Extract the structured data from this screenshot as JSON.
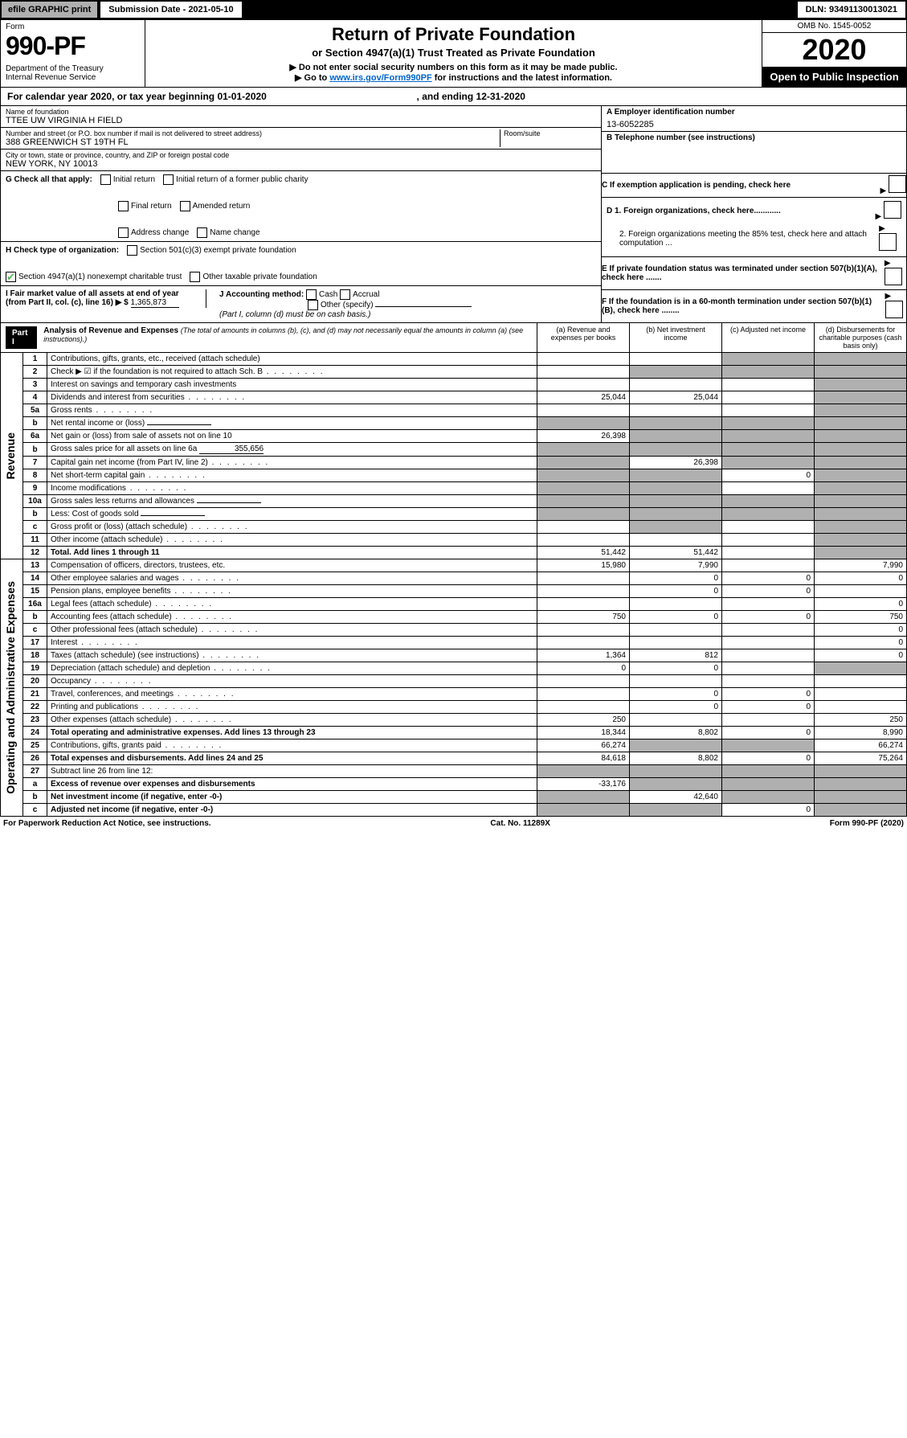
{
  "top": {
    "efile": "efile GRAPHIC print",
    "submission": "Submission Date - 2021-05-10",
    "dln": "DLN: 93491130013021"
  },
  "header": {
    "form_label": "Form",
    "form_number": "990-PF",
    "dept": "Department of the Treasury\nInternal Revenue Service",
    "title": "Return of Private Foundation",
    "subtitle": "or Section 4947(a)(1) Trust Treated as Private Foundation",
    "note1": "▶ Do not enter social security numbers on this form as it may be made public.",
    "note2_pre": "▶ Go to ",
    "note2_link": "www.irs.gov/Form990PF",
    "note2_post": " for instructions and the latest information.",
    "omb": "OMB No. 1545-0052",
    "year": "2020",
    "open": "Open to Public Inspection"
  },
  "cal_year": {
    "prefix": "For calendar year 2020, or tax year beginning ",
    "begin": "01-01-2020",
    "mid": " , and ending ",
    "end": "12-31-2020"
  },
  "info": {
    "name_label": "Name of foundation",
    "name": "TTEE UW VIRGINIA H FIELD",
    "addr_label": "Number and street (or P.O. box number if mail is not delivered to street address)",
    "addr": "388 GREENWICH ST 19TH FL",
    "room_label": "Room/suite",
    "city_label": "City or town, state or province, country, and ZIP or foreign postal code",
    "city": "NEW YORK, NY  10013",
    "ein_label": "A Employer identification number",
    "ein": "13-6052285",
    "tel_label": "B Telephone number (see instructions)",
    "c_label": "C If exemption application is pending, check here",
    "d1": "D 1. Foreign organizations, check here............",
    "d2": "2. Foreign organizations meeting the 85% test, check here and attach computation ...",
    "e": "E  If private foundation status was terminated under section 507(b)(1)(A), check here .......",
    "f": "F  If the foundation is in a 60-month termination under section 507(b)(1)(B), check here ........"
  },
  "checks_g": {
    "label": "G Check all that apply:",
    "items": [
      "Initial return",
      "Initial return of a former public charity",
      "Final return",
      "Amended return",
      "Address change",
      "Name change"
    ]
  },
  "checks_h": {
    "label": "H Check type of organization:",
    "items": [
      "Section 501(c)(3) exempt private foundation"
    ],
    "line2_checked": "Section 4947(a)(1) nonexempt charitable trust",
    "line2_other": "Other taxable private foundation"
  },
  "section_ij": {
    "i_label": "I Fair market value of all assets at end of year (from Part II, col. (c), line 16) ▶ $",
    "i_val": "1,365,873",
    "j_label": "J Accounting method:",
    "j_items": [
      "Cash",
      "Accrual"
    ],
    "j_other": "Other (specify)",
    "j_note": "(Part I, column (d) must be on cash basis.)"
  },
  "part1": {
    "label": "Part I",
    "title": "Analysis of Revenue and Expenses",
    "subtitle": "(The total of amounts in columns (b), (c), and (d) may not necessarily equal the amounts in column (a) (see instructions).)",
    "col_a": "(a)   Revenue and expenses per books",
    "col_b": "(b)  Net investment income",
    "col_c": "(c)  Adjusted net income",
    "col_d": "(d)  Disbursements for charitable purposes (cash basis only)"
  },
  "rows": [
    {
      "n": "1",
      "t": "Contributions, gifts, grants, etc., received (attach schedule)",
      "a": "",
      "b": "",
      "c": "s",
      "d": "s"
    },
    {
      "n": "2",
      "t": "Check ▶ ☑ if the foundation is not required to attach Sch. B",
      "a": "",
      "b": "s",
      "c": "s",
      "d": "s",
      "dots": true
    },
    {
      "n": "3",
      "t": "Interest on savings and temporary cash investments",
      "a": "",
      "b": "",
      "c": "",
      "d": "s"
    },
    {
      "n": "4",
      "t": "Dividends and interest from securities",
      "a": "25,044",
      "b": "25,044",
      "c": "",
      "d": "s",
      "dots": true
    },
    {
      "n": "5a",
      "t": "Gross rents",
      "a": "",
      "b": "",
      "c": "",
      "d": "s",
      "dots": true
    },
    {
      "n": "b",
      "t": "Net rental income or (loss)",
      "a": "s",
      "b": "s",
      "c": "s",
      "d": "s",
      "inline": true
    },
    {
      "n": "6a",
      "t": "Net gain or (loss) from sale of assets not on line 10",
      "a": "26,398",
      "b": "s",
      "c": "s",
      "d": "s"
    },
    {
      "n": "b",
      "t": "Gross sales price for all assets on line 6a",
      "a": "s",
      "b": "s",
      "c": "s",
      "d": "s",
      "inline": true,
      "inline_val": "355,656"
    },
    {
      "n": "7",
      "t": "Capital gain net income (from Part IV, line 2)",
      "a": "s",
      "b": "26,398",
      "c": "s",
      "d": "s",
      "dots": true
    },
    {
      "n": "8",
      "t": "Net short-term capital gain",
      "a": "s",
      "b": "s",
      "c": "0",
      "d": "s",
      "dots": true
    },
    {
      "n": "9",
      "t": "Income modifications",
      "a": "s",
      "b": "s",
      "c": "",
      "d": "s",
      "dots": true
    },
    {
      "n": "10a",
      "t": "Gross sales less returns and allowances",
      "a": "s",
      "b": "s",
      "c": "s",
      "d": "s",
      "inline": true
    },
    {
      "n": "b",
      "t": "Less: Cost of goods sold",
      "a": "s",
      "b": "s",
      "c": "s",
      "d": "s",
      "dots": true,
      "inline": true
    },
    {
      "n": "c",
      "t": "Gross profit or (loss) (attach schedule)",
      "a": "",
      "b": "s",
      "c": "",
      "d": "s",
      "dots": true
    },
    {
      "n": "11",
      "t": "Other income (attach schedule)",
      "a": "",
      "b": "",
      "c": "",
      "d": "s",
      "dots": true
    },
    {
      "n": "12",
      "t": "Total. Add lines 1 through 11",
      "a": "51,442",
      "b": "51,442",
      "c": "",
      "d": "s",
      "dots": true,
      "bold": true
    }
  ],
  "rows2": [
    {
      "n": "13",
      "t": "Compensation of officers, directors, trustees, etc.",
      "a": "15,980",
      "b": "7,990",
      "c": "",
      "d": "7,990"
    },
    {
      "n": "14",
      "t": "Other employee salaries and wages",
      "a": "",
      "b": "0",
      "c": "0",
      "d": "0",
      "dots": true
    },
    {
      "n": "15",
      "t": "Pension plans, employee benefits",
      "a": "",
      "b": "0",
      "c": "0",
      "d": "",
      "dots": true
    },
    {
      "n": "16a",
      "t": "Legal fees (attach schedule)",
      "a": "",
      "b": "",
      "c": "",
      "d": "0",
      "dots": true
    },
    {
      "n": "b",
      "t": "Accounting fees (attach schedule)",
      "a": "750",
      "b": "0",
      "c": "0",
      "d": "750",
      "dots": true
    },
    {
      "n": "c",
      "t": "Other professional fees (attach schedule)",
      "a": "",
      "b": "",
      "c": "",
      "d": "0",
      "dots": true
    },
    {
      "n": "17",
      "t": "Interest",
      "a": "",
      "b": "",
      "c": "",
      "d": "0",
      "dots": true
    },
    {
      "n": "18",
      "t": "Taxes (attach schedule) (see instructions)",
      "a": "1,364",
      "b": "812",
      "c": "",
      "d": "0",
      "dots": true
    },
    {
      "n": "19",
      "t": "Depreciation (attach schedule) and depletion",
      "a": "0",
      "b": "0",
      "c": "",
      "d": "s",
      "dots": true
    },
    {
      "n": "20",
      "t": "Occupancy",
      "a": "",
      "b": "",
      "c": "",
      "d": "",
      "dots": true
    },
    {
      "n": "21",
      "t": "Travel, conferences, and meetings",
      "a": "",
      "b": "0",
      "c": "0",
      "d": "",
      "dots": true
    },
    {
      "n": "22",
      "t": "Printing and publications",
      "a": "",
      "b": "0",
      "c": "0",
      "d": "",
      "dots": true
    },
    {
      "n": "23",
      "t": "Other expenses (attach schedule)",
      "a": "250",
      "b": "",
      "c": "",
      "d": "250",
      "dots": true
    },
    {
      "n": "24",
      "t": "Total operating and administrative expenses. Add lines 13 through 23",
      "a": "18,344",
      "b": "8,802",
      "c": "0",
      "d": "8,990",
      "dots": true,
      "bold": true
    },
    {
      "n": "25",
      "t": "Contributions, gifts, grants paid",
      "a": "66,274",
      "b": "s",
      "c": "s",
      "d": "66,274",
      "dots": true
    },
    {
      "n": "26",
      "t": "Total expenses and disbursements. Add lines 24 and 25",
      "a": "84,618",
      "b": "8,802",
      "c": "0",
      "d": "75,264",
      "bold": true
    },
    {
      "n": "27",
      "t": "Subtract line 26 from line 12:",
      "a": "s",
      "b": "s",
      "c": "s",
      "d": "s"
    },
    {
      "n": "a",
      "t": "Excess of revenue over expenses and disbursements",
      "a": "-33,176",
      "b": "s",
      "c": "s",
      "d": "s",
      "bold": true
    },
    {
      "n": "b",
      "t": "Net investment income (if negative, enter -0-)",
      "a": "s",
      "b": "42,640",
      "c": "s",
      "d": "s",
      "bold": true
    },
    {
      "n": "c",
      "t": "Adjusted net income (if negative, enter -0-)",
      "a": "s",
      "b": "s",
      "c": "0",
      "d": "s",
      "bold": true,
      "dots": true
    }
  ],
  "side_labels": {
    "revenue": "Revenue",
    "expenses": "Operating and Administrative Expenses"
  },
  "footer": {
    "left": "For Paperwork Reduction Act Notice, see instructions.",
    "center": "Cat. No. 11289X",
    "right": "Form 990-PF (2020)"
  }
}
